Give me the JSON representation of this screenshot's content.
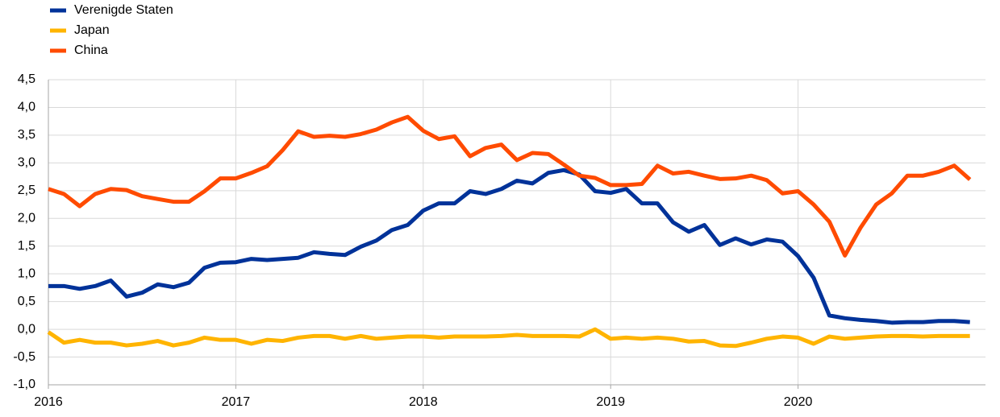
{
  "chart_data": {
    "type": "line",
    "x": [
      2016,
      2016.083,
      2016.167,
      2016.25,
      2016.333,
      2016.417,
      2016.5,
      2016.583,
      2016.667,
      2016.75,
      2016.833,
      2016.917,
      2017,
      2017.083,
      2017.167,
      2017.25,
      2017.333,
      2017.417,
      2017.5,
      2017.583,
      2017.667,
      2017.75,
      2017.833,
      2017.917,
      2018,
      2018.083,
      2018.167,
      2018.25,
      2018.333,
      2018.417,
      2018.5,
      2018.583,
      2018.667,
      2018.75,
      2018.833,
      2018.917,
      2019,
      2019.083,
      2019.167,
      2019.25,
      2019.333,
      2019.417,
      2019.5,
      2019.583,
      2019.667,
      2019.75,
      2019.833,
      2019.917,
      2020,
      2020.083,
      2020.167,
      2020.25,
      2020.333,
      2020.417,
      2020.5,
      2020.583,
      2020.667,
      2020.75,
      2020.833,
      2020.917
    ],
    "series": [
      {
        "name": "Verenigde Staten",
        "color": "#003299",
        "values": [
          0.78,
          0.78,
          0.73,
          0.78,
          0.88,
          0.59,
          0.66,
          0.81,
          0.76,
          0.84,
          1.11,
          1.2,
          1.21,
          1.27,
          1.25,
          1.27,
          1.29,
          1.39,
          1.36,
          1.34,
          1.49,
          1.6,
          1.79,
          1.88,
          2.14,
          2.27,
          2.27,
          2.49,
          2.44,
          2.53,
          2.68,
          2.63,
          2.82,
          2.87,
          2.79,
          2.49,
          2.46,
          2.53,
          2.27,
          2.27,
          1.93,
          1.76,
          1.88,
          1.52,
          1.64,
          1.53,
          1.62,
          1.58,
          1.32,
          0.93,
          0.25,
          0.2,
          0.17,
          0.15,
          0.12,
          0.13,
          0.13,
          0.15,
          0.15,
          0.13
        ]
      },
      {
        "name": "Japan",
        "color": "#ffb400",
        "values": [
          -0.05,
          -0.24,
          -0.19,
          -0.24,
          -0.24,
          -0.29,
          -0.26,
          -0.21,
          -0.29,
          -0.24,
          -0.15,
          -0.19,
          -0.19,
          -0.26,
          -0.19,
          -0.21,
          -0.15,
          -0.12,
          -0.12,
          -0.17,
          -0.12,
          -0.17,
          -0.15,
          -0.13,
          -0.13,
          -0.15,
          -0.13,
          -0.13,
          -0.13,
          -0.12,
          -0.1,
          -0.12,
          -0.12,
          -0.12,
          -0.13,
          0.0,
          -0.17,
          -0.15,
          -0.17,
          -0.15,
          -0.17,
          -0.22,
          -0.21,
          -0.29,
          -0.3,
          -0.24,
          -0.17,
          -0.13,
          -0.15,
          -0.26,
          -0.13,
          -0.17,
          -0.15,
          -0.13,
          -0.12,
          -0.12,
          -0.13,
          -0.12,
          -0.12,
          -0.12
        ]
      },
      {
        "name": "China",
        "color": "#ff4b00",
        "values": [
          2.53,
          2.44,
          2.22,
          2.44,
          2.53,
          2.51,
          2.4,
          2.35,
          2.3,
          2.3,
          2.49,
          2.72,
          2.72,
          2.82,
          2.94,
          3.23,
          3.57,
          3.47,
          3.49,
          3.47,
          3.52,
          3.6,
          3.73,
          3.83,
          3.58,
          3.43,
          3.48,
          3.12,
          3.27,
          3.33,
          3.05,
          3.18,
          3.16,
          2.97,
          2.77,
          2.73,
          2.6,
          2.6,
          2.62,
          2.95,
          2.81,
          2.84,
          2.77,
          2.71,
          2.72,
          2.77,
          2.69,
          2.45,
          2.49,
          2.25,
          1.94,
          1.33,
          1.83,
          2.25,
          2.45,
          2.77,
          2.77,
          2.84,
          2.95,
          2.7
        ]
      }
    ],
    "xlim": [
      2016,
      2021
    ],
    "xticks": [
      2016,
      2017,
      2018,
      2019,
      2020
    ],
    "ylim": [
      -1,
      4.5
    ],
    "yticks": [
      {
        "value": -1,
        "label": "-1,0"
      },
      {
        "value": -0.5,
        "label": "-0,5"
      },
      {
        "value": 0,
        "label": "0,0"
      },
      {
        "value": 0.5,
        "label": "0,5"
      },
      {
        "value": 1,
        "label": "1,0"
      },
      {
        "value": 1.5,
        "label": "1,5"
      },
      {
        "value": 2,
        "label": "2,0"
      },
      {
        "value": 2.5,
        "label": "2,5"
      },
      {
        "value": 3,
        "label": "3,0"
      },
      {
        "value": 3.5,
        "label": "3,5"
      },
      {
        "value": 4,
        "label": "4,0"
      },
      {
        "value": 4.5,
        "label": "4,5"
      }
    ],
    "grid": true,
    "legend": "top-left"
  }
}
